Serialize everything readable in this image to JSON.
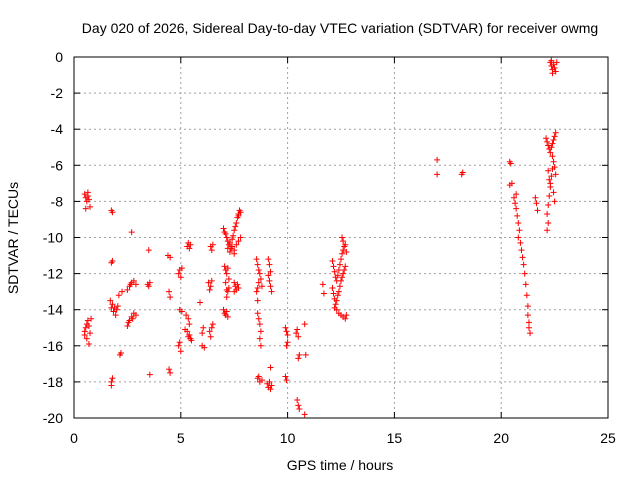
{
  "chart_data": {
    "type": "scatter",
    "title": "Day 020 of 2026, Sidereal Day-to-day VTEC variation (SDTVAR) for receiver owmg",
    "xlabel": "GPS time / hours",
    "ylabel": "SDTVAR / TECUs",
    "xlim": [
      0,
      25
    ],
    "ylim": [
      -20,
      0
    ],
    "xticks": [
      0,
      5,
      10,
      15,
      20,
      25
    ],
    "xtick_labels": [
      "0",
      "5",
      "10",
      "15",
      "20",
      "25"
    ],
    "yticks": [
      0,
      -2,
      -4,
      -6,
      -8,
      -10,
      -12,
      -14,
      -16,
      -18,
      -20
    ],
    "ytick_labels": [
      "0",
      "-2",
      "-4",
      "-6",
      "-8",
      "-10",
      "-12",
      "-14",
      "-16",
      "-18",
      "-20"
    ],
    "grid": true,
    "marker": "+",
    "marker_color": "#ff0000",
    "series": [
      {
        "name": "SDTVAR",
        "points": [
          [
            0.5,
            -7.6
          ],
          [
            0.55,
            -7.8
          ],
          [
            0.6,
            -8.0
          ],
          [
            0.65,
            -7.7
          ],
          [
            0.7,
            -7.9
          ],
          [
            0.75,
            -8.3
          ],
          [
            0.55,
            -8.4
          ],
          [
            0.65,
            -7.5
          ],
          [
            0.5,
            -15.2
          ],
          [
            0.55,
            -15.0
          ],
          [
            0.6,
            -14.8
          ],
          [
            0.65,
            -14.6
          ],
          [
            0.7,
            -14.9
          ],
          [
            0.5,
            -15.4
          ],
          [
            0.6,
            -15.6
          ],
          [
            0.7,
            -15.9
          ],
          [
            0.75,
            -15.3
          ],
          [
            0.8,
            -14.5
          ],
          [
            1.75,
            -8.5
          ],
          [
            1.8,
            -8.6
          ],
          [
            1.75,
            -11.4
          ],
          [
            1.8,
            -11.3
          ],
          [
            1.7,
            -13.5
          ],
          [
            1.8,
            -13.7
          ],
          [
            1.9,
            -13.9
          ],
          [
            2.0,
            -14.0
          ],
          [
            2.05,
            -13.8
          ],
          [
            1.85,
            -14.1
          ],
          [
            1.95,
            -14.3
          ],
          [
            1.75,
            -13.9
          ],
          [
            1.75,
            -18.0
          ],
          [
            1.8,
            -17.8
          ],
          [
            1.75,
            -18.2
          ],
          [
            2.15,
            -16.5
          ],
          [
            2.2,
            -16.4
          ],
          [
            2.1,
            -13.2
          ],
          [
            2.25,
            -13.0
          ],
          [
            2.5,
            -14.9
          ],
          [
            2.6,
            -14.6
          ],
          [
            2.7,
            -14.4
          ],
          [
            2.8,
            -14.2
          ],
          [
            2.9,
            -14.3
          ],
          [
            2.55,
            -14.7
          ],
          [
            2.75,
            -14.5
          ],
          [
            2.5,
            -12.9
          ],
          [
            2.6,
            -12.7
          ],
          [
            2.7,
            -12.5
          ],
          [
            2.8,
            -12.4
          ],
          [
            2.9,
            -12.6
          ],
          [
            2.65,
            -12.6
          ],
          [
            2.7,
            -9.7
          ],
          [
            3.45,
            -12.6
          ],
          [
            3.5,
            -12.7
          ],
          [
            3.55,
            -12.5
          ],
          [
            3.5,
            -10.7
          ],
          [
            3.55,
            -17.6
          ],
          [
            4.4,
            -11.0
          ],
          [
            4.5,
            -11.1
          ],
          [
            4.45,
            -13.0
          ],
          [
            4.5,
            -13.3
          ],
          [
            4.45,
            -17.3
          ],
          [
            4.5,
            -17.5
          ],
          [
            4.9,
            -12.0
          ],
          [
            4.95,
            -11.8
          ],
          [
            5.0,
            -12.2
          ],
          [
            5.05,
            -11.7
          ],
          [
            4.95,
            -14.0
          ],
          [
            5.05,
            -14.1
          ],
          [
            4.9,
            -16.0
          ],
          [
            4.95,
            -15.8
          ],
          [
            5.0,
            -16.3
          ],
          [
            5.3,
            -10.5
          ],
          [
            5.35,
            -10.3
          ],
          [
            5.4,
            -10.6
          ],
          [
            5.45,
            -10.4
          ],
          [
            5.25,
            -14.3
          ],
          [
            5.35,
            -14.5
          ],
          [
            5.4,
            -14.8
          ],
          [
            5.3,
            -15.2
          ],
          [
            5.4,
            -15.4
          ],
          [
            5.45,
            -15.6
          ],
          [
            5.35,
            -15.5
          ],
          [
            5.2,
            -15.1
          ],
          [
            5.5,
            -15.7
          ],
          [
            5.9,
            -13.6
          ],
          [
            6.0,
            -15.3
          ],
          [
            6.05,
            -15.0
          ],
          [
            6.1,
            -16.1
          ],
          [
            6.0,
            -16.0
          ],
          [
            6.3,
            -12.5
          ],
          [
            6.4,
            -12.7
          ],
          [
            6.45,
            -12.4
          ],
          [
            6.35,
            -12.9
          ],
          [
            6.4,
            -10.5
          ],
          [
            6.45,
            -10.7
          ],
          [
            6.5,
            -10.4
          ],
          [
            6.35,
            -15.2
          ],
          [
            6.45,
            -15.0
          ],
          [
            6.5,
            -14.8
          ],
          [
            6.4,
            -15.5
          ],
          [
            7.0,
            -9.5
          ],
          [
            7.05,
            -9.7
          ],
          [
            7.1,
            -9.8
          ],
          [
            7.15,
            -10.0
          ],
          [
            7.2,
            -10.2
          ],
          [
            7.25,
            -10.4
          ],
          [
            7.3,
            -10.3
          ],
          [
            7.35,
            -10.6
          ],
          [
            7.4,
            -10.1
          ],
          [
            7.45,
            -9.9
          ],
          [
            7.5,
            -9.6
          ],
          [
            7.55,
            -9.4
          ],
          [
            7.6,
            -9.2
          ],
          [
            7.65,
            -8.9
          ],
          [
            7.7,
            -8.7
          ],
          [
            7.75,
            -8.5
          ],
          [
            7.8,
            -8.6
          ],
          [
            7.7,
            -8.8
          ],
          [
            7.2,
            -10.6
          ],
          [
            7.3,
            -10.8
          ],
          [
            7.4,
            -10.5
          ],
          [
            7.5,
            -10.7
          ],
          [
            7.6,
            -10.4
          ],
          [
            7.7,
            -10.2
          ],
          [
            7.8,
            -10.0
          ],
          [
            7.5,
            -10.9
          ],
          [
            7.05,
            -11.6
          ],
          [
            7.1,
            -11.8
          ],
          [
            7.15,
            -12.0
          ],
          [
            7.2,
            -11.7
          ],
          [
            7.25,
            -12.3
          ],
          [
            7.1,
            -12.5
          ],
          [
            7.15,
            -12.9
          ],
          [
            7.15,
            -13.3
          ],
          [
            7.2,
            -13.0
          ],
          [
            7.25,
            -12.8
          ],
          [
            7.0,
            -14.0
          ],
          [
            7.05,
            -14.2
          ],
          [
            7.1,
            -14.3
          ],
          [
            7.15,
            -14.1
          ],
          [
            7.2,
            -14.4
          ],
          [
            7.5,
            -12.5
          ],
          [
            7.55,
            -12.7
          ],
          [
            7.6,
            -12.9
          ],
          [
            7.65,
            -12.6
          ],
          [
            7.7,
            -12.8
          ],
          [
            7.5,
            -13.0
          ],
          [
            8.55,
            -11.2
          ],
          [
            8.6,
            -11.5
          ],
          [
            8.65,
            -11.8
          ],
          [
            8.7,
            -12.0
          ],
          [
            8.75,
            -12.3
          ],
          [
            8.8,
            -12.7
          ],
          [
            8.65,
            -12.5
          ],
          [
            8.6,
            -12.8
          ],
          [
            8.55,
            -13.0
          ],
          [
            8.6,
            -14.2
          ],
          [
            8.65,
            -14.5
          ],
          [
            8.7,
            -14.8
          ],
          [
            8.75,
            -15.2
          ],
          [
            8.7,
            -15.6
          ],
          [
            8.75,
            -16.0
          ],
          [
            8.6,
            -13.5
          ],
          [
            8.6,
            -17.8
          ],
          [
            8.7,
            -18.0
          ],
          [
            8.8,
            -17.9
          ],
          [
            8.65,
            -17.7
          ],
          [
            9.1,
            -12.1
          ],
          [
            9.15,
            -12.4
          ],
          [
            9.2,
            -12.7
          ],
          [
            9.25,
            -13.0
          ],
          [
            9.2,
            -11.9
          ],
          [
            9.1,
            -11.2
          ],
          [
            9.15,
            -11.5
          ],
          [
            9.05,
            -18.1
          ],
          [
            9.1,
            -18.3
          ],
          [
            9.15,
            -18.0
          ],
          [
            9.2,
            -18.4
          ],
          [
            9.25,
            -18.2
          ],
          [
            9.2,
            -17.2
          ],
          [
            9.9,
            -15.0
          ],
          [
            9.95,
            -15.2
          ],
          [
            10.0,
            -15.4
          ],
          [
            9.95,
            -16.0
          ],
          [
            10.0,
            -15.8
          ],
          [
            9.9,
            -17.7
          ],
          [
            9.95,
            -17.9
          ],
          [
            10.4,
            -15.3
          ],
          [
            10.5,
            -15.5
          ],
          [
            10.45,
            -15.1
          ],
          [
            10.5,
            -16.7
          ],
          [
            10.55,
            -16.5
          ],
          [
            10.45,
            -19.0
          ],
          [
            10.5,
            -19.3
          ],
          [
            10.55,
            -19.5
          ],
          [
            10.8,
            -19.8
          ],
          [
            10.8,
            -14.8
          ],
          [
            10.85,
            -16.5
          ],
          [
            11.65,
            -12.6
          ],
          [
            11.7,
            -13.1
          ],
          [
            12.1,
            -11.3
          ],
          [
            12.15,
            -11.6
          ],
          [
            12.2,
            -11.9
          ],
          [
            12.25,
            -12.2
          ],
          [
            12.3,
            -12.4
          ],
          [
            12.35,
            -12.1
          ],
          [
            12.4,
            -11.8
          ],
          [
            12.45,
            -11.5
          ],
          [
            12.5,
            -11.2
          ],
          [
            12.55,
            -10.9
          ],
          [
            12.6,
            -10.7
          ],
          [
            12.65,
            -10.5
          ],
          [
            12.6,
            -10.2
          ],
          [
            12.55,
            -10.0
          ],
          [
            12.7,
            -10.4
          ],
          [
            12.75,
            -10.8
          ],
          [
            12.1,
            -12.8
          ],
          [
            12.15,
            -13.1
          ],
          [
            12.2,
            -13.4
          ],
          [
            12.25,
            -13.7
          ],
          [
            12.3,
            -13.5
          ],
          [
            12.35,
            -13.2
          ],
          [
            12.4,
            -13.0
          ],
          [
            12.45,
            -12.7
          ],
          [
            12.5,
            -12.4
          ],
          [
            12.55,
            -12.2
          ],
          [
            12.6,
            -12.0
          ],
          [
            12.65,
            -11.8
          ],
          [
            12.7,
            -11.6
          ],
          [
            12.2,
            -13.9
          ],
          [
            12.3,
            -14.0
          ],
          [
            12.4,
            -14.2
          ],
          [
            12.5,
            -14.3
          ],
          [
            12.6,
            -14.4
          ],
          [
            12.7,
            -14.5
          ],
          [
            12.75,
            -14.3
          ],
          [
            17.0,
            -5.7
          ],
          [
            17.0,
            -6.5
          ],
          [
            18.15,
            -6.5
          ],
          [
            18.2,
            -6.4
          ],
          [
            20.4,
            -5.8
          ],
          [
            20.45,
            -5.9
          ],
          [
            20.4,
            -7.1
          ],
          [
            20.5,
            -7.0
          ],
          [
            20.6,
            -7.8
          ],
          [
            20.65,
            -8.1
          ],
          [
            20.7,
            -8.4
          ],
          [
            20.75,
            -8.8
          ],
          [
            20.8,
            -9.2
          ],
          [
            20.85,
            -9.6
          ],
          [
            20.8,
            -10.0
          ],
          [
            20.9,
            -10.3
          ],
          [
            20.95,
            -10.7
          ],
          [
            21.0,
            -11.1
          ],
          [
            21.05,
            -11.5
          ],
          [
            21.1,
            -12.0
          ],
          [
            21.15,
            -12.6
          ],
          [
            21.2,
            -13.2
          ],
          [
            21.25,
            -13.8
          ],
          [
            21.25,
            -14.3
          ],
          [
            21.3,
            -14.7
          ],
          [
            21.3,
            -15.0
          ],
          [
            21.35,
            -15.3
          ],
          [
            20.7,
            -7.6
          ],
          [
            21.6,
            -7.8
          ],
          [
            21.65,
            -8.1
          ],
          [
            21.7,
            -8.5
          ],
          [
            22.1,
            -4.5
          ],
          [
            22.15,
            -4.7
          ],
          [
            22.2,
            -4.9
          ],
          [
            22.25,
            -5.1
          ],
          [
            22.3,
            -5.3
          ],
          [
            22.35,
            -5.0
          ],
          [
            22.4,
            -4.8
          ],
          [
            22.45,
            -4.6
          ],
          [
            22.5,
            -4.4
          ],
          [
            22.55,
            -4.2
          ],
          [
            22.4,
            -5.5
          ],
          [
            22.45,
            -5.8
          ],
          [
            22.5,
            -6.1
          ],
          [
            22.55,
            -6.5
          ],
          [
            22.2,
            -6.3
          ],
          [
            22.25,
            -6.8
          ],
          [
            22.3,
            -7.2
          ],
          [
            22.25,
            -7.7
          ],
          [
            22.2,
            -8.2
          ],
          [
            22.15,
            -8.7
          ],
          [
            22.2,
            -9.2
          ],
          [
            22.15,
            -9.6
          ],
          [
            22.3,
            -7.0
          ],
          [
            22.35,
            -6.6
          ],
          [
            22.4,
            -6.2
          ],
          [
            22.45,
            -7.5
          ],
          [
            22.5,
            -8.0
          ],
          [
            22.3,
            -0.3
          ],
          [
            22.35,
            -0.5
          ],
          [
            22.4,
            -0.7
          ],
          [
            22.45,
            -0.4
          ],
          [
            22.5,
            -0.6
          ],
          [
            22.55,
            -0.8
          ],
          [
            22.6,
            -0.3
          ],
          [
            22.4,
            -0.9
          ],
          [
            22.35,
            -0.2
          ]
        ]
      }
    ]
  }
}
